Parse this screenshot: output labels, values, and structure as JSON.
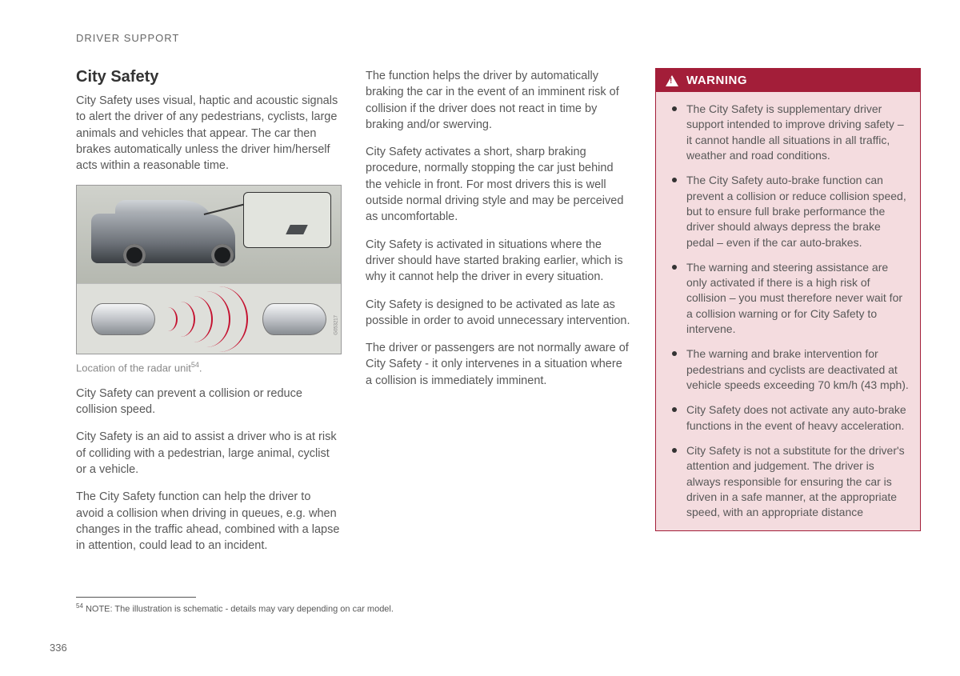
{
  "header": "DRIVER SUPPORT",
  "title": "City Safety",
  "col1": {
    "intro": "City Safety uses visual, haptic and acoustic signals to alert the driver of any pedestrians, cyclists, large animals and vehicles that appear. The car then brakes automatically unless the driver him/herself acts within a reasonable time.",
    "figure_code": "G053217",
    "caption": "Location of the radar unit",
    "caption_sup": "54",
    "caption_end": ".",
    "p1": "City Safety can prevent a collision or reduce collision speed.",
    "p2": "City Safety is an aid to assist a driver who is at risk of colliding with a pedestrian, large animal, cyclist or a vehicle.",
    "p3": "The City Safety function can help the driver to avoid a collision when driving in queues, e.g. when changes in the traffic ahead, combined with a lapse in attention, could lead to an incident."
  },
  "col2": {
    "p1": "The function helps the driver by automatically braking the car in the event of an imminent risk of collision if the driver does not react in time by braking and/or swerving.",
    "p2": "City Safety activates a short, sharp braking procedure, normally stopping the car just behind the vehicle in front. For most drivers this is well outside normal driving style and may be perceived as uncomfortable.",
    "p3": "City Safety is activated in situations where the driver should have started braking earlier, which is why it cannot help the driver in every situation.",
    "p4": "City Safety is designed to be activated as late as possible in order to avoid unnecessary intervention.",
    "p5": "The driver or passengers are not normally aware of City Safety - it only intervenes in a situation where a collision is immediately imminent."
  },
  "warning": {
    "title": "WARNING",
    "items": [
      "The City Safety is supplementary driver support intended to improve driving safety – it cannot handle all situations in all traffic, weather and road conditions.",
      "The City Safety auto-brake function can prevent a collision or reduce collision speed, but to ensure full brake performance the driver should always depress the brake pedal – even if the car auto-brakes.",
      "The warning and steering assistance are only activated if there is a high risk of collision – you must therefore never wait for a collision warning or for City Safety to intervene.",
      "The warning and brake intervention for pedestrians and cyclists are deactivated at vehicle speeds exceeding 70 km/h (43 mph).",
      "City Safety does not activate any auto-brake functions in the event of heavy acceleration.",
      "City Safety is not a substitute for the driver's attention and judgement. The driver is always responsible for ensuring the car is driven in a safe manner, at the appropriate speed, with an appropriate distance"
    ]
  },
  "footnote": {
    "num": "54",
    "text": " NOTE: The illustration is schematic - details may vary depending on car model."
  },
  "page_number": "336"
}
